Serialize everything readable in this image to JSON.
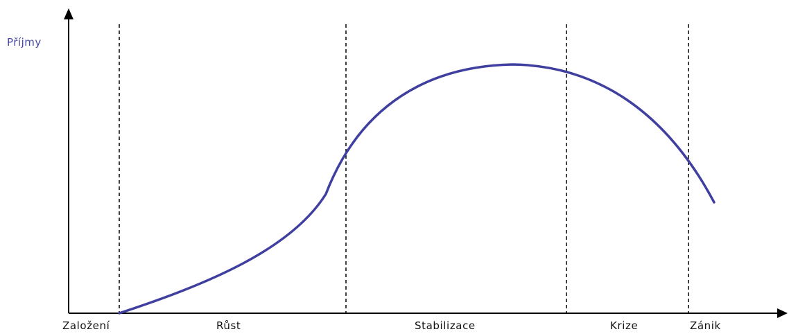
{
  "y_axis_label": "Příjmy",
  "phases": [
    "Založení",
    "Růst",
    "Stabilizace",
    "Krize",
    "Zánik"
  ],
  "colors": {
    "curve": "#3f3f9f",
    "axes": "#000000",
    "y_label": "#4646a8"
  }
}
